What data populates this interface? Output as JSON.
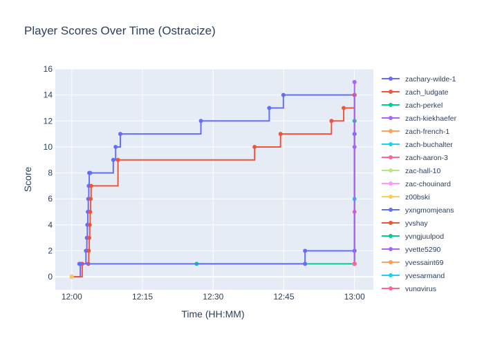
{
  "chart_data": {
    "type": "line",
    "title": "Player Scores Over Time (Ostracize)",
    "xlabel": "Time (HH:MM)",
    "ylabel": "Score",
    "x_ticks": [
      "12:00",
      "12:15",
      "12:30",
      "12:45",
      "13:00"
    ],
    "x_tick_minutes": [
      0,
      15,
      30,
      45,
      60
    ],
    "xlim_minutes": [
      -3.5,
      64
    ],
    "y_ticks": [
      0,
      2,
      4,
      6,
      8,
      10,
      12,
      14,
      16
    ],
    "ylim": [
      -1,
      16
    ],
    "grid": true,
    "legend_position": "right",
    "line_shape": "step",
    "series": [
      {
        "name": "zachary-wilde-1",
        "color": "#636efa",
        "x": [
          0,
          1.8,
          3.0,
          3.2,
          3.3,
          3.4,
          3.5,
          3.6,
          3.7,
          3.9,
          8.8,
          9.3,
          10.3,
          27.4,
          41.9,
          44.9,
          60,
          60
        ],
        "y": [
          0,
          1,
          2,
          3,
          4,
          5,
          6,
          7,
          8,
          8,
          9,
          10,
          11,
          12,
          13,
          14,
          14,
          1
        ]
      },
      {
        "name": "zach_ludgate",
        "color": "#ef553b",
        "x": [
          0,
          2.2,
          3.5,
          3.6,
          3.7,
          3.8,
          3.9,
          4.0,
          4.1,
          9.8,
          38.8,
          44.3,
          55.1,
          57.7,
          60,
          60
        ],
        "y": [
          0,
          1,
          1,
          2,
          3,
          4,
          5,
          6,
          7,
          9,
          10,
          11,
          12,
          13,
          14,
          1
        ]
      },
      {
        "name": "zach-perkel",
        "color": "#00cc96",
        "x": [
          26.5,
          60,
          60
        ],
        "y": [
          1,
          1,
          12
        ]
      },
      {
        "name": "zach-kiekhaefer",
        "color": "#ab63fa",
        "x": [
          60,
          60
        ],
        "y": [
          1,
          10
        ]
      },
      {
        "name": "zach-french-1",
        "color": "#ffa15a",
        "x": [
          60
        ],
        "y": [
          1
        ]
      },
      {
        "name": "zach-buchalter",
        "color": "#19d3f3",
        "x": [
          60,
          60
        ],
        "y": [
          1,
          6
        ]
      },
      {
        "name": "zach-aaron-3",
        "color": "#ff6692",
        "x": [
          60,
          60
        ],
        "y": [
          1,
          5
        ]
      },
      {
        "name": "zac-hall-10",
        "color": "#b6e880",
        "x": [
          60
        ],
        "y": [
          1
        ]
      },
      {
        "name": "zac-chouinard",
        "color": "#ff97ff",
        "x": [
          60
        ],
        "y": [
          1
        ]
      },
      {
        "name": "z00bski",
        "color": "#fecb52",
        "x": [
          0
        ],
        "y": [
          0
        ]
      },
      {
        "name": "yxngmomjeans",
        "color": "#636efa",
        "x": [
          1.6,
          49.5,
          49.5,
          60,
          60
        ],
        "y": [
          1,
          1,
          2,
          2,
          11
        ]
      },
      {
        "name": "yvshay",
        "color": "#ef553b",
        "x": [
          60
        ],
        "y": [
          1
        ]
      },
      {
        "name": "yvngjuulpod",
        "color": "#00cc96",
        "x": [
          60
        ],
        "y": [
          1
        ]
      },
      {
        "name": "yvette5290",
        "color": "#ab63fa",
        "x": [
          60,
          60
        ],
        "y": [
          1,
          15
        ]
      },
      {
        "name": "yvessaint69",
        "color": "#ffa15a",
        "x": [
          60
        ],
        "y": [
          1
        ]
      },
      {
        "name": "yvesarmand",
        "color": "#19d3f3",
        "x": [
          60
        ],
        "y": [
          1
        ]
      },
      {
        "name": "yungyirus",
        "color": "#ff6692",
        "x": [
          60
        ],
        "y": [
          1
        ]
      }
    ]
  }
}
